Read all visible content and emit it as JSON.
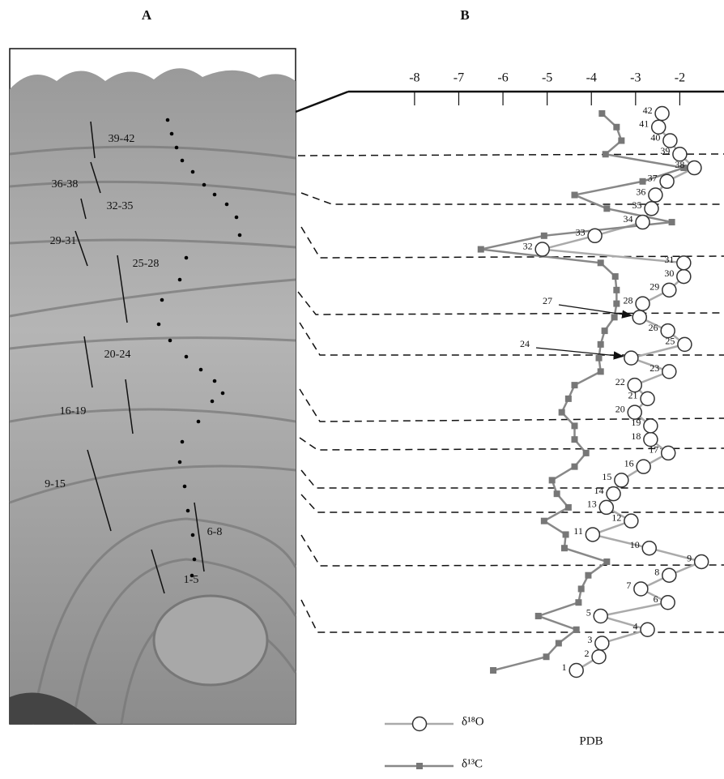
{
  "panel_labels": [
    "A",
    "B"
  ],
  "photo": {
    "zone_labels": [
      "39-42",
      "36-38",
      "32-35",
      "29-31",
      "25-28",
      "20-24",
      "16-19",
      "9-15",
      "6-8",
      "1-5"
    ]
  },
  "chart_data": {
    "type": "line",
    "xlabel": "PDB",
    "xlim": [
      -9.5,
      -1
    ],
    "xticks": [
      -8,
      -7,
      -6,
      -5,
      -4,
      -3,
      -2
    ],
    "categories": [
      "1",
      "2",
      "3",
      "4",
      "5",
      "6",
      "7",
      "8",
      "9",
      "10",
      "11",
      "12",
      "13",
      "14",
      "15",
      "16",
      "17",
      "18",
      "19",
      "20",
      "21",
      "22",
      "23",
      "24",
      "25",
      "26",
      "27",
      "28",
      "29",
      "30",
      "31",
      "32",
      "33",
      "34",
      "35",
      "36",
      "37",
      "38",
      "39",
      "40",
      "41",
      "42"
    ],
    "series": [
      {
        "name": "δ¹⁸O",
        "color": "#aaaaaa",
        "values": [
          -4.34,
          -3.83,
          -3.76,
          -2.73,
          -3.79,
          -2.27,
          -2.88,
          -2.24,
          -1.51,
          -2.69,
          -3.97,
          -3.1,
          -3.66,
          -3.5,
          -3.32,
          -2.82,
          -2.26,
          -2.66,
          -2.66,
          -3.02,
          -2.73,
          -3.02,
          -2.24,
          -3.1,
          -1.89,
          -2.27,
          -2.91,
          -2.84,
          -2.24,
          -1.91,
          -1.91,
          -5.11,
          -3.92,
          -2.84,
          -2.64,
          -2.55,
          -2.29,
          -1.67,
          -2.0,
          -2.22,
          -2.48,
          -2.4
        ]
      },
      {
        "name": "δ¹³C",
        "color": "#888888",
        "values": [
          -6.22,
          -5.02,
          -4.74,
          -4.34,
          -5.2,
          -4.29,
          -4.23,
          -4.07,
          -3.65,
          -4.61,
          -4.58,
          -5.07,
          -4.52,
          -4.78,
          -4.89,
          -4.38,
          -4.12,
          -4.38,
          -4.38,
          -4.67,
          -4.52,
          -4.38,
          -3.79,
          -3.83,
          -3.79,
          -3.7,
          -3.48,
          -3.43,
          -3.43,
          -3.46,
          -3.79,
          -6.5,
          -5.07,
          -2.18,
          -3.65,
          -4.38,
          -2.84,
          -1.91,
          -3.68,
          -3.32,
          -3.43,
          -3.76
        ]
      }
    ]
  }
}
